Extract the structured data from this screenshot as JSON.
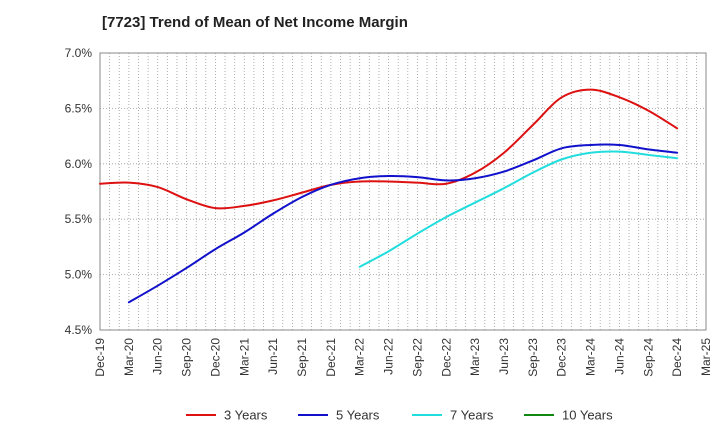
{
  "chart_data": {
    "type": "line",
    "title": "[7723]  Trend of Mean of Net Income Margin",
    "xlabel": "",
    "ylabel": "",
    "x_ticks": [
      "Dec-19",
      "Mar-20",
      "Jun-20",
      "Sep-20",
      "Dec-20",
      "Mar-21",
      "Jun-21",
      "Sep-21",
      "Dec-21",
      "Mar-22",
      "Jun-22",
      "Sep-22",
      "Dec-22",
      "Mar-23",
      "Jun-23",
      "Sep-23",
      "Dec-23",
      "Mar-24",
      "Jun-24",
      "Sep-24",
      "Dec-24",
      "Mar-25"
    ],
    "y_ticks": [
      "4.5%",
      "5.0%",
      "5.5%",
      "6.0%",
      "6.5%",
      "7.0%"
    ],
    "ylim": [
      4.5,
      7.0
    ],
    "grid": true,
    "legend_position": "bottom",
    "series": [
      {
        "name": "3 Years",
        "color": "#dd1111",
        "values": [
          [
            "Dec-19",
            5.82
          ],
          [
            "Mar-20",
            5.83
          ],
          [
            "Jun-20",
            5.79
          ],
          [
            "Sep-20",
            5.68
          ],
          [
            "Dec-20",
            5.6
          ],
          [
            "Mar-21",
            5.62
          ],
          [
            "Jun-21",
            5.67
          ],
          [
            "Sep-21",
            5.74
          ],
          [
            "Dec-21",
            5.81
          ],
          [
            "Mar-22",
            5.84
          ],
          [
            "Jun-22",
            5.84
          ],
          [
            "Sep-22",
            5.83
          ],
          [
            "Dec-22",
            5.82
          ],
          [
            "Mar-23",
            5.92
          ],
          [
            "Jun-23",
            6.1
          ],
          [
            "Sep-23",
            6.35
          ],
          [
            "Dec-23",
            6.6
          ],
          [
            "Mar-24",
            6.67
          ],
          [
            "Jun-24",
            6.6
          ],
          [
            "Sep-24",
            6.48
          ],
          [
            "Dec-24",
            6.32
          ]
        ]
      },
      {
        "name": "5 Years",
        "color": "#1111cc",
        "values": [
          [
            "Mar-20",
            4.75
          ],
          [
            "Jun-20",
            4.9
          ],
          [
            "Sep-20",
            5.06
          ],
          [
            "Dec-20",
            5.23
          ],
          [
            "Mar-21",
            5.38
          ],
          [
            "Jun-21",
            5.55
          ],
          [
            "Sep-21",
            5.7
          ],
          [
            "Dec-21",
            5.81
          ],
          [
            "Mar-22",
            5.87
          ],
          [
            "Jun-22",
            5.89
          ],
          [
            "Sep-22",
            5.88
          ],
          [
            "Dec-22",
            5.85
          ],
          [
            "Mar-23",
            5.87
          ],
          [
            "Jun-23",
            5.93
          ],
          [
            "Sep-23",
            6.03
          ],
          [
            "Dec-23",
            6.14
          ],
          [
            "Mar-24",
            6.17
          ],
          [
            "Jun-24",
            6.17
          ],
          [
            "Sep-24",
            6.13
          ],
          [
            "Dec-24",
            6.1
          ]
        ]
      },
      {
        "name": "7 Years",
        "color": "#22dddd",
        "values": [
          [
            "Mar-22",
            5.07
          ],
          [
            "Jun-22",
            5.21
          ],
          [
            "Sep-22",
            5.37
          ],
          [
            "Dec-22",
            5.52
          ],
          [
            "Mar-23",
            5.65
          ],
          [
            "Jun-23",
            5.78
          ],
          [
            "Sep-23",
            5.92
          ],
          [
            "Dec-23",
            6.04
          ],
          [
            "Mar-24",
            6.1
          ],
          [
            "Jun-24",
            6.11
          ],
          [
            "Sep-24",
            6.08
          ],
          [
            "Dec-24",
            6.05
          ]
        ]
      },
      {
        "name": "10 Years",
        "color": "#118811",
        "values": []
      }
    ]
  }
}
